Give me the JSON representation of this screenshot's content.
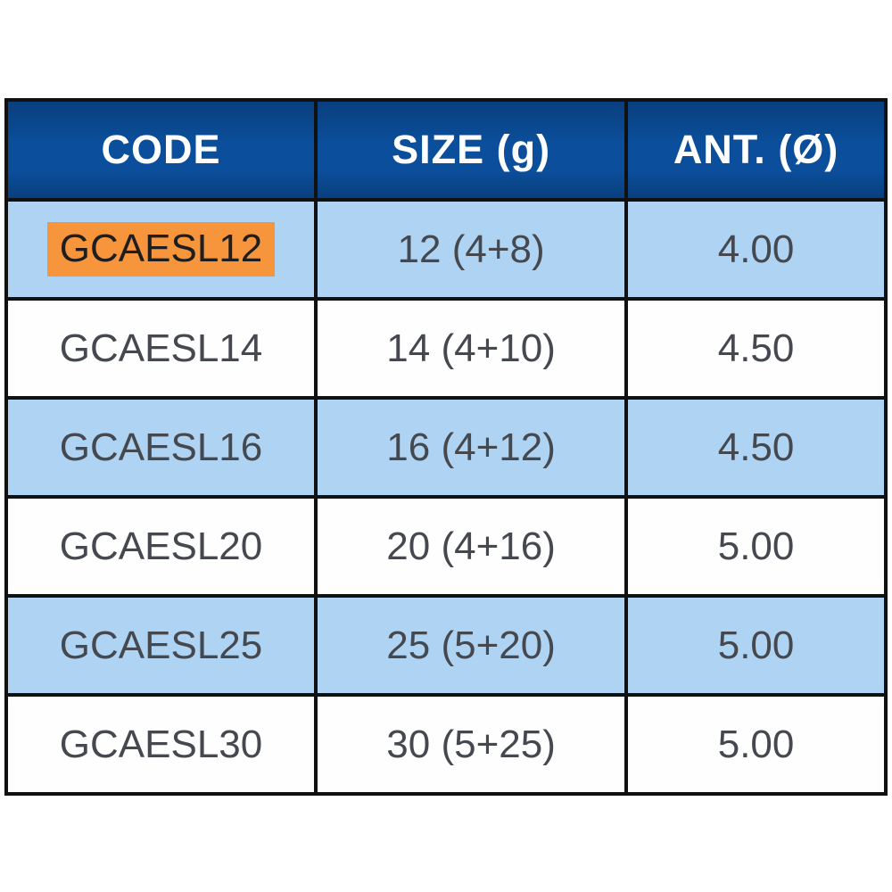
{
  "chart_data": {
    "type": "table",
    "columns": [
      "CODE",
      "SIZE (g)",
      "ANT. (Ø)"
    ],
    "rows": [
      {
        "code": "GCAESL12",
        "size": "12 (4+8)",
        "ant": "4.00"
      },
      {
        "code": "GCAESL14",
        "size": "14 (4+10)",
        "ant": "4.50"
      },
      {
        "code": "GCAESL16",
        "size": "16 (4+12)",
        "ant": "4.50"
      },
      {
        "code": "GCAESL20",
        "size": "20 (4+16)",
        "ant": "5.00"
      },
      {
        "code": "GCAESL25",
        "size": "25 (5+20)",
        "ant": "5.00"
      },
      {
        "code": "GCAESL30",
        "size": "30 (5+25)",
        "ant": "5.00"
      }
    ],
    "highlighted_cell": {
      "row": 0,
      "column": "CODE",
      "value": "GCAESL12"
    },
    "layout_hints": {
      "striping": "alternating rows light blue / white, first data row striped",
      "grid": "heavy black borders"
    }
  },
  "colors": {
    "header_bg": "#0B4F9C",
    "header_bg_dark": "#093F7E",
    "header_text": "#FFFFFF",
    "row_alt_bg": "#AFD3F2",
    "row_bg": "#FEFEFE",
    "highlight_bg": "#F7953C",
    "border_color": "#111111",
    "cell_text": "#45494F",
    "highlight_text": "#1E1E20",
    "page_bg": "#FFFFFF"
  }
}
